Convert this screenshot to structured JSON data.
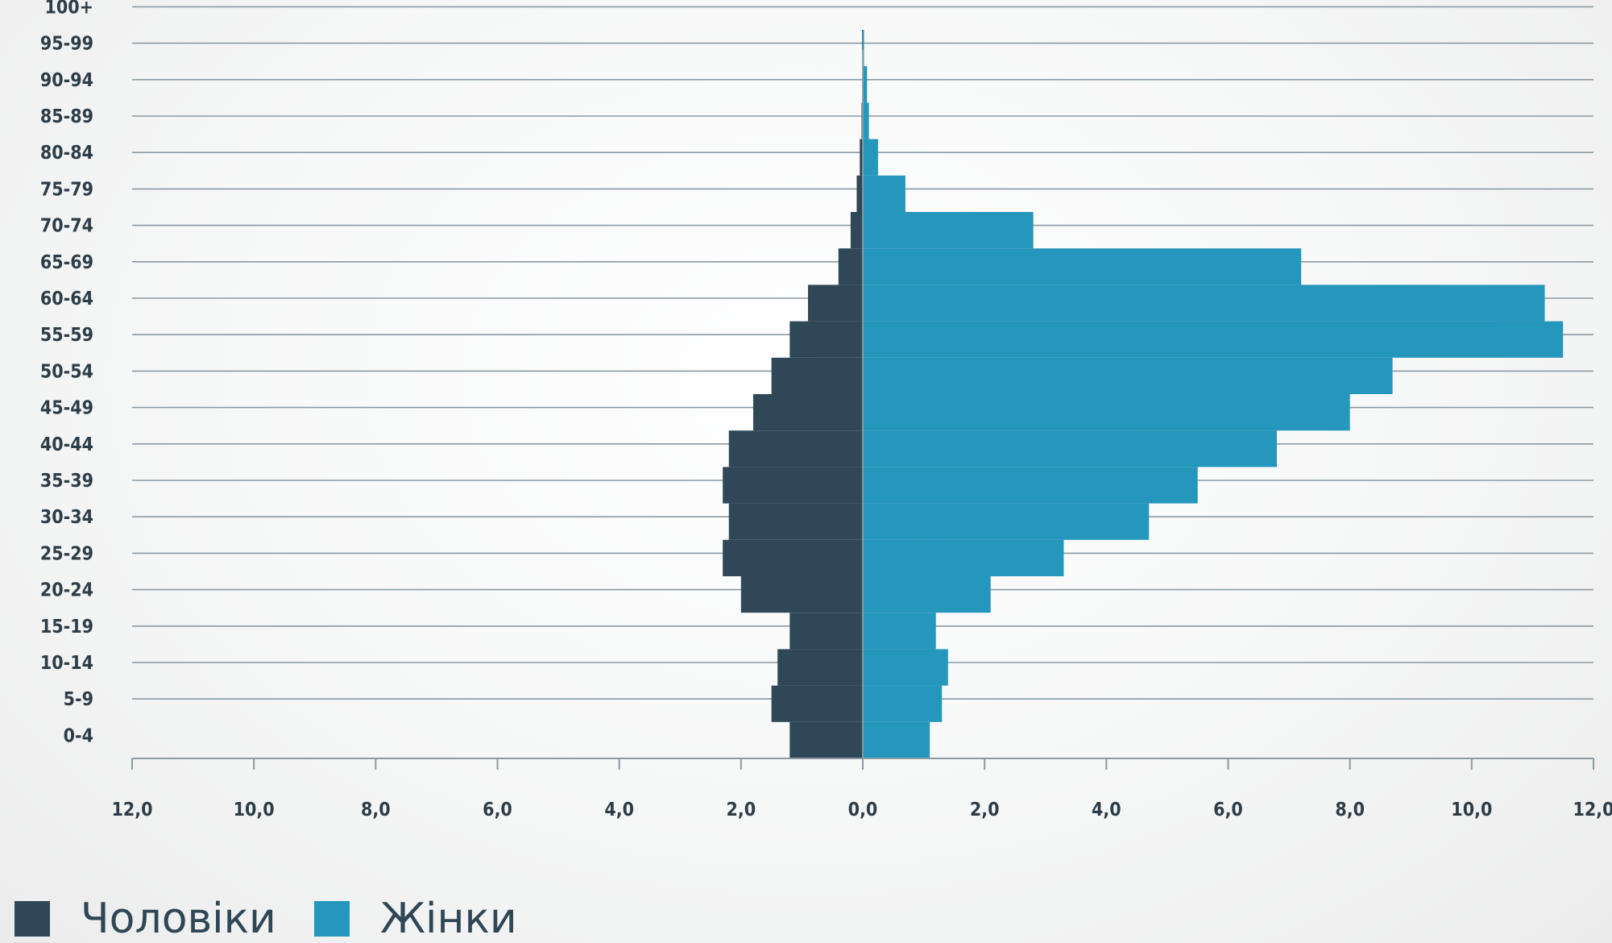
{
  "chart_data": {
    "type": "bar",
    "orientation": "horizontal",
    "categories": [
      "0-4",
      "5-9",
      "10-14",
      "15-19",
      "20-24",
      "25-29",
      "30-34",
      "35-39",
      "40-44",
      "45-49",
      "50-54",
      "55-59",
      "60-64",
      "65-69",
      "70-74",
      "75-79",
      "80-84",
      "85-89",
      "90-94",
      "95-99",
      "100+"
    ],
    "series": [
      {
        "name": "Чоловіки",
        "color": "#2f4858",
        "values": [
          1.2,
          1.5,
          1.4,
          1.2,
          2.0,
          2.3,
          2.2,
          2.3,
          2.2,
          1.8,
          1.5,
          1.2,
          0.9,
          0.4,
          0.2,
          0.1,
          0.05,
          0.02,
          0.01,
          0.01,
          0.0
        ]
      },
      {
        "name": "Жінки",
        "color": "#2596bc",
        "values": [
          1.1,
          1.3,
          1.4,
          1.2,
          2.1,
          3.3,
          4.7,
          5.5,
          6.8,
          8.0,
          8.7,
          11.5,
          11.2,
          7.2,
          2.8,
          0.7,
          0.25,
          0.1,
          0.07,
          0.02,
          0.0
        ]
      }
    ],
    "xticks": [
      "12,0",
      "10,0",
      "8,0",
      "6,0",
      "4,0",
      "2,0",
      "0,0",
      "2,0",
      "4,0",
      "6,0",
      "8,0",
      "10,0",
      "12,0"
    ],
    "xlim": [
      -12,
      12
    ],
    "grid": true,
    "legend": "bottom-left"
  }
}
